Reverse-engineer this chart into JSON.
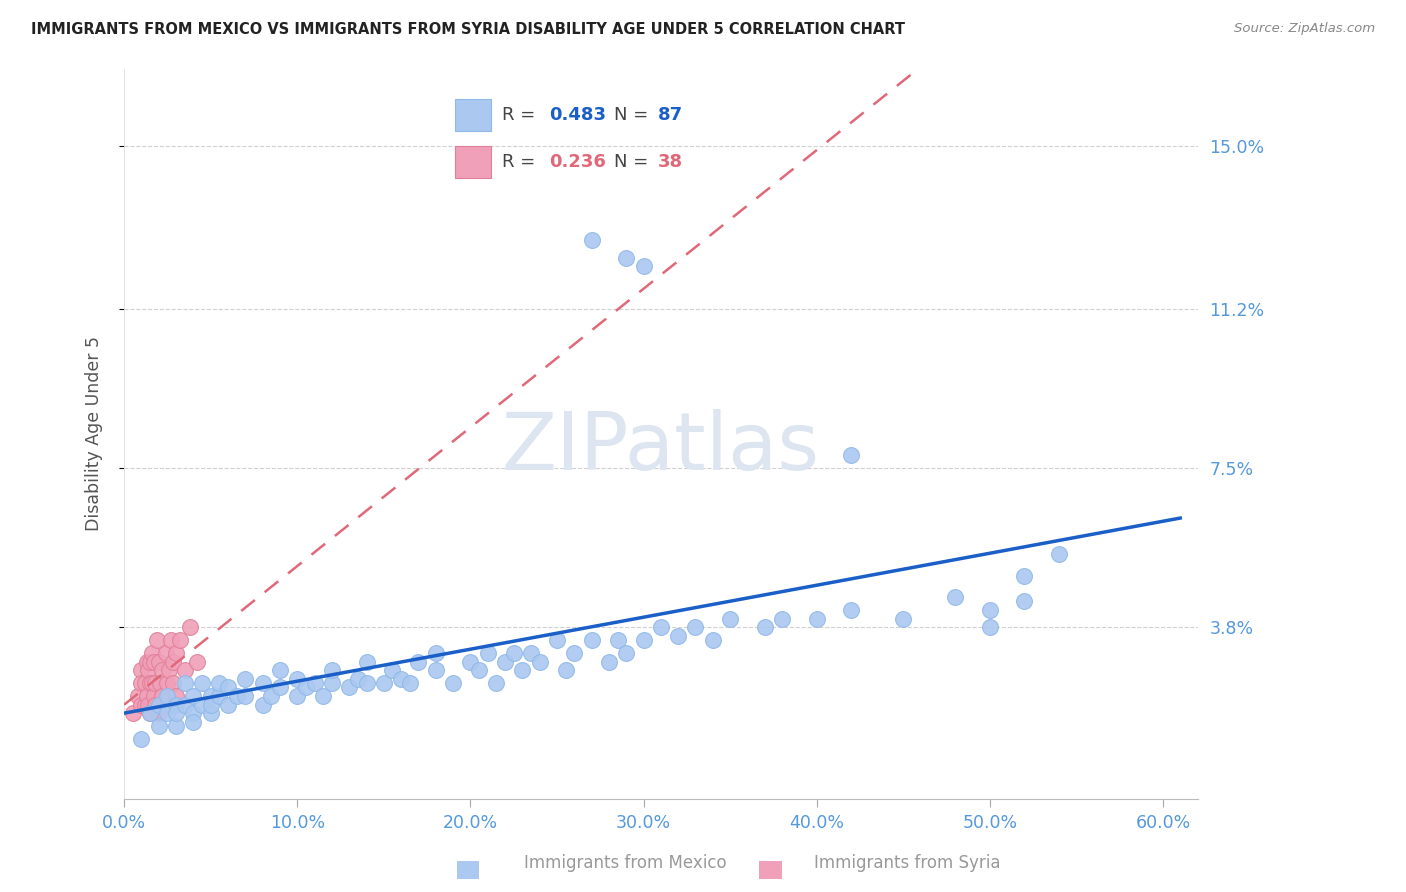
{
  "title": "IMMIGRANTS FROM MEXICO VS IMMIGRANTS FROM SYRIA DISABILITY AGE UNDER 5 CORRELATION CHART",
  "source": "Source: ZipAtlas.com",
  "ylabel": "Disability Age Under 5",
  "ytick_labels": [
    "15.0%",
    "11.2%",
    "7.5%",
    "3.8%"
  ],
  "ytick_values": [
    0.15,
    0.112,
    0.075,
    0.038
  ],
  "xlim": [
    0.0,
    0.62
  ],
  "ylim": [
    -0.002,
    0.168
  ],
  "mexico_R": 0.483,
  "mexico_N": 87,
  "syria_R": 0.236,
  "syria_N": 38,
  "mexico_color": "#aac8f0",
  "mexico_edge_color": "#90b8e8",
  "syria_color": "#f0a0b8",
  "syria_edge_color": "#e08098",
  "mexico_line_color": "#1a5fc8",
  "syria_line_color": "#e06878",
  "background_color": "#ffffff",
  "grid_color": "#d0d0d0",
  "title_color": "#222222",
  "axis_tick_color": "#5599dd",
  "ylabel_color": "#555555",
  "watermark_color": "#dde5f0",
  "legend_box_color": "#cccccc",
  "bottom_legend_color": "#999999",
  "mexico_x": [
    0.01,
    0.015,
    0.02,
    0.02,
    0.025,
    0.025,
    0.03,
    0.03,
    0.03,
    0.035,
    0.035,
    0.04,
    0.04,
    0.04,
    0.045,
    0.045,
    0.05,
    0.05,
    0.05,
    0.055,
    0.055,
    0.06,
    0.06,
    0.065,
    0.07,
    0.07,
    0.08,
    0.08,
    0.085,
    0.09,
    0.09,
    0.1,
    0.1,
    0.105,
    0.11,
    0.115,
    0.12,
    0.12,
    0.13,
    0.135,
    0.14,
    0.14,
    0.15,
    0.155,
    0.16,
    0.165,
    0.17,
    0.18,
    0.18,
    0.19,
    0.2,
    0.205,
    0.21,
    0.215,
    0.22,
    0.225,
    0.23,
    0.235,
    0.24,
    0.25,
    0.255,
    0.26,
    0.27,
    0.28,
    0.285,
    0.29,
    0.3,
    0.31,
    0.32,
    0.33,
    0.34,
    0.35,
    0.37,
    0.38,
    0.4,
    0.42,
    0.45,
    0.48,
    0.5,
    0.52,
    0.27,
    0.29,
    0.3,
    0.42,
    0.5,
    0.52,
    0.54
  ],
  "mexico_y": [
    0.012,
    0.018,
    0.015,
    0.02,
    0.018,
    0.022,
    0.015,
    0.02,
    0.018,
    0.02,
    0.025,
    0.018,
    0.022,
    0.016,
    0.02,
    0.025,
    0.018,
    0.022,
    0.02,
    0.022,
    0.025,
    0.02,
    0.024,
    0.022,
    0.022,
    0.026,
    0.02,
    0.025,
    0.022,
    0.024,
    0.028,
    0.022,
    0.026,
    0.024,
    0.025,
    0.022,
    0.025,
    0.028,
    0.024,
    0.026,
    0.025,
    0.03,
    0.025,
    0.028,
    0.026,
    0.025,
    0.03,
    0.028,
    0.032,
    0.025,
    0.03,
    0.028,
    0.032,
    0.025,
    0.03,
    0.032,
    0.028,
    0.032,
    0.03,
    0.035,
    0.028,
    0.032,
    0.035,
    0.03,
    0.035,
    0.032,
    0.035,
    0.038,
    0.036,
    0.038,
    0.035,
    0.04,
    0.038,
    0.04,
    0.04,
    0.042,
    0.04,
    0.045,
    0.042,
    0.044,
    0.128,
    0.124,
    0.122,
    0.078,
    0.038,
    0.05,
    0.055
  ],
  "syria_x": [
    0.005,
    0.008,
    0.01,
    0.01,
    0.01,
    0.012,
    0.012,
    0.013,
    0.013,
    0.014,
    0.014,
    0.015,
    0.015,
    0.015,
    0.016,
    0.016,
    0.017,
    0.017,
    0.018,
    0.018,
    0.019,
    0.02,
    0.02,
    0.021,
    0.022,
    0.022,
    0.024,
    0.025,
    0.026,
    0.027,
    0.028,
    0.028,
    0.03,
    0.03,
    0.032,
    0.035,
    0.038,
    0.042
  ],
  "syria_y": [
    0.018,
    0.022,
    0.028,
    0.025,
    0.02,
    0.025,
    0.02,
    0.03,
    0.022,
    0.028,
    0.02,
    0.03,
    0.025,
    0.018,
    0.025,
    0.032,
    0.022,
    0.03,
    0.025,
    0.02,
    0.035,
    0.018,
    0.03,
    0.025,
    0.028,
    0.022,
    0.032,
    0.025,
    0.028,
    0.035,
    0.025,
    0.03,
    0.032,
    0.022,
    0.035,
    0.028,
    0.038,
    0.03
  ],
  "mexico_trendline": [
    0.008,
    0.06
  ],
  "syria_trendline_start_x": 0.0,
  "syria_trendline_start_y": 0.01,
  "syria_trendline_end_x": 0.6,
  "syria_trendline_end_y": 0.155
}
